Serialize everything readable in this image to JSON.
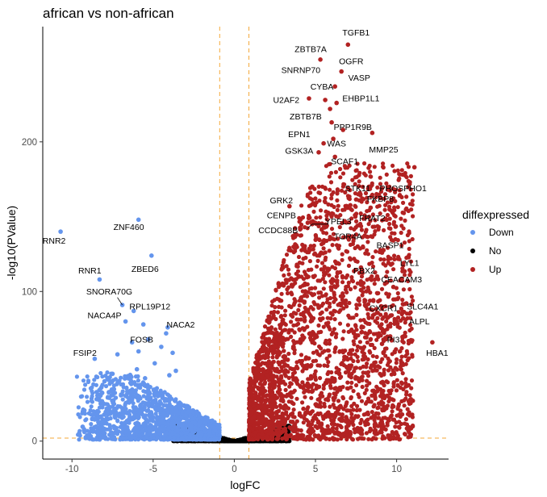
{
  "chart_data": {
    "type": "scatter",
    "title": "african vs non-african",
    "xlabel": "logFC",
    "ylabel": "-log10(PValue)",
    "xlim": [
      -11.8,
      13.2
    ],
    "ylim": [
      -12,
      277
    ],
    "x_ticks": [
      -10,
      -5,
      0,
      5,
      10
    ],
    "y_ticks": [
      0,
      100,
      200
    ],
    "thresholds": {
      "logfc": [
        -0.9,
        0.9
      ],
      "neg_log10_p": 2
    },
    "threshold_color": "#F4A93A",
    "grid": false,
    "legend": {
      "title": "diffexpressed",
      "position": "right",
      "items": [
        {
          "label": "Down",
          "color": "#6495ED"
        },
        {
          "label": "No",
          "color": "#000000"
        },
        {
          "label": "Up",
          "color": "#B22222"
        }
      ]
    },
    "series": [
      {
        "name": "Down",
        "color": "#6495ED",
        "points": [
          [
            -10.7,
            140
          ],
          [
            -5.9,
            148
          ],
          [
            -5.1,
            124
          ],
          [
            -8.3,
            108
          ],
          [
            -6.9,
            91
          ],
          [
            -6.2,
            87
          ],
          [
            -6.7,
            80
          ],
          [
            -5.6,
            78
          ],
          [
            -4.1,
            76
          ],
          [
            -4.2,
            72
          ],
          [
            -5.3,
            68
          ],
          [
            -6.3,
            66
          ],
          [
            -8.6,
            55
          ],
          [
            -4.5,
            63
          ],
          [
            -3.8,
            59
          ],
          [
            -5.9,
            60
          ],
          [
            -7.2,
            58
          ],
          [
            -4.9,
            52
          ],
          [
            -3.6,
            47
          ],
          [
            -4.0,
            44
          ],
          [
            -6.0,
            48
          ],
          [
            -5.5,
            42
          ],
          [
            -7.5,
            45
          ],
          [
            -8.0,
            40
          ]
        ],
        "cloud": {
          "x_range": [
            -9.8,
            -0.9
          ],
          "y_max": 45
        }
      },
      {
        "name": "No",
        "color": "#000000",
        "cloud": {
          "x_range": [
            -3.8,
            3.4
          ],
          "y_max": 12
        }
      },
      {
        "name": "Up",
        "color": "#B22222",
        "points": [
          [
            7.0,
            265
          ],
          [
            5.3,
            255
          ],
          [
            6.6,
            247
          ],
          [
            6.2,
            237
          ],
          [
            4.6,
            229
          ],
          [
            5.6,
            228
          ],
          [
            6.3,
            226
          ],
          [
            5.9,
            222
          ],
          [
            6.0,
            213
          ],
          [
            6.7,
            208
          ],
          [
            6.1,
            202
          ],
          [
            5.5,
            199
          ],
          [
            8.5,
            206
          ],
          [
            5.2,
            193
          ],
          [
            6.2,
            190
          ],
          [
            11.1,
            183
          ],
          [
            7.0,
            169
          ],
          [
            4.8,
            170
          ],
          [
            8.3,
            170
          ],
          [
            8.4,
            156
          ],
          [
            3.4,
            157
          ],
          [
            4.8,
            145
          ],
          [
            6.8,
            147
          ],
          [
            5.5,
            133
          ],
          [
            7.6,
            130
          ],
          [
            9.1,
            126
          ],
          [
            9.5,
            119
          ],
          [
            7.8,
            116
          ],
          [
            8.8,
            110
          ],
          [
            9.8,
            103
          ],
          [
            8.4,
            88
          ],
          [
            10.6,
            92
          ],
          [
            10.0,
            80
          ],
          [
            9.6,
            70
          ],
          [
            12.2,
            66
          ],
          [
            9.1,
            65
          ],
          [
            11.0,
            27
          ],
          [
            10.4,
            82
          ],
          [
            7.8,
            101
          ]
        ],
        "cloud": {
          "x_range": [
            0.9,
            11.0
          ],
          "y_max": 185
        }
      }
    ],
    "annotations": [
      {
        "text": "TGFB1",
        "x": 7.5,
        "y": 271
      },
      {
        "text": "ZBTB7A",
        "x": 4.7,
        "y": 260
      },
      {
        "text": "OGFR",
        "x": 7.2,
        "y": 252
      },
      {
        "text": "SNRNP70",
        "x": 4.1,
        "y": 246
      },
      {
        "text": "VASP",
        "x": 7.7,
        "y": 241
      },
      {
        "text": "CYBA",
        "x": 5.4,
        "y": 235
      },
      {
        "text": "U2AF2",
        "x": 3.2,
        "y": 226
      },
      {
        "text": "EHBP1L1",
        "x": 7.8,
        "y": 227
      },
      {
        "text": "ZBTB7B",
        "x": 4.4,
        "y": 215
      },
      {
        "text": "PPP1R9B",
        "x": 7.3,
        "y": 208
      },
      {
        "text": "EPN1",
        "x": 4.0,
        "y": 203
      },
      {
        "text": "WAS",
        "x": 6.3,
        "y": 197
      },
      {
        "text": "MMP25",
        "x": 9.2,
        "y": 193
      },
      {
        "text": "GSK3A",
        "x": 4.0,
        "y": 192
      },
      {
        "text": "SCAF1",
        "x": 6.8,
        "y": 185
      },
      {
        "text": "STK11",
        "x": 7.6,
        "y": 167
      },
      {
        "text": "PHOSPHO1",
        "x": 10.4,
        "y": 167
      },
      {
        "text": "GRK2",
        "x": 2.9,
        "y": 159
      },
      {
        "text": "FKBP8",
        "x": 9.0,
        "y": 160
      },
      {
        "text": "CENPB",
        "x": 2.9,
        "y": 149
      },
      {
        "text": "YPEL3",
        "x": 6.4,
        "y": 145
      },
      {
        "text": "FRAT2",
        "x": 8.5,
        "y": 147
      },
      {
        "text": "CCDC88B",
        "x": 2.7,
        "y": 139
      },
      {
        "text": "TOR4A",
        "x": 7.0,
        "y": 135
      },
      {
        "text": "BASP1",
        "x": 9.6,
        "y": 129
      },
      {
        "text": "LYL1",
        "x": 10.8,
        "y": 117
      },
      {
        "text": "PBX2",
        "x": 8.0,
        "y": 112
      },
      {
        "text": "CEACAM3",
        "x": 10.3,
        "y": 106
      },
      {
        "text": "CXCR1",
        "x": 9.2,
        "y": 87
      },
      {
        "text": "SLC4A1",
        "x": 11.6,
        "y": 88
      },
      {
        "text": "ALPL",
        "x": 11.4,
        "y": 78
      },
      {
        "text": "PI3",
        "x": 9.8,
        "y": 66
      },
      {
        "text": "HBA1",
        "x": 12.5,
        "y": 57
      },
      {
        "text": "RNR2",
        "x": -11.1,
        "y": 132
      },
      {
        "text": "ZNF460",
        "x": -6.5,
        "y": 141
      },
      {
        "text": "RNR1",
        "x": -8.9,
        "y": 112
      },
      {
        "text": "ZBED6",
        "x": -5.5,
        "y": 113
      },
      {
        "text": "SNORA70G",
        "x": -7.7,
        "y": 98
      },
      {
        "text": "RPL19P12",
        "x": -5.2,
        "y": 88
      },
      {
        "text": "NACA4P",
        "x": -8.0,
        "y": 82
      },
      {
        "text": "NACA2",
        "x": -3.3,
        "y": 76
      },
      {
        "text": "FOSB",
        "x": -5.7,
        "y": 66
      },
      {
        "text": "FSIP2",
        "x": -9.2,
        "y": 57
      }
    ],
    "connectors": [
      {
        "from": [
          -7.2,
          96
        ],
        "to": [
          -6.9,
          91
        ]
      },
      {
        "from": [
          4.5,
          142
        ],
        "to": [
          4.8,
          145
        ]
      },
      {
        "from": [
          5.8,
          145
        ],
        "to": [
          4.8,
          145
        ]
      }
    ]
  }
}
